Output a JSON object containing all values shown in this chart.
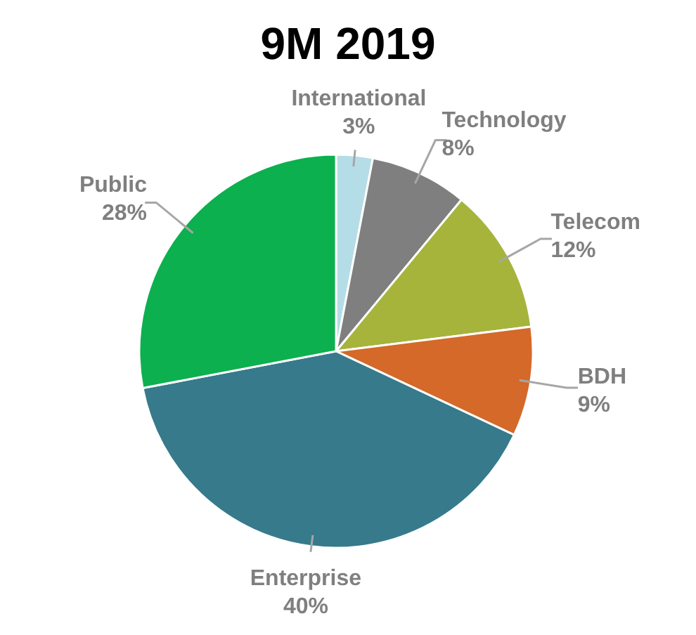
{
  "chart_data": {
    "type": "pie",
    "title": "9M 2019",
    "categories": [
      "International",
      "Technology",
      "Telecom",
      "BDH",
      "Enterprise",
      "Public"
    ],
    "values": [
      3,
      8,
      12,
      9,
      40,
      28
    ],
    "colors": [
      "#b4dde8",
      "#7f7f7f",
      "#a6b43c",
      "#d4692a",
      "#367a8c",
      "#0cb04e"
    ],
    "value_labels": [
      "3%",
      "8%",
      "12%",
      "9%",
      "40%",
      "28%"
    ]
  }
}
